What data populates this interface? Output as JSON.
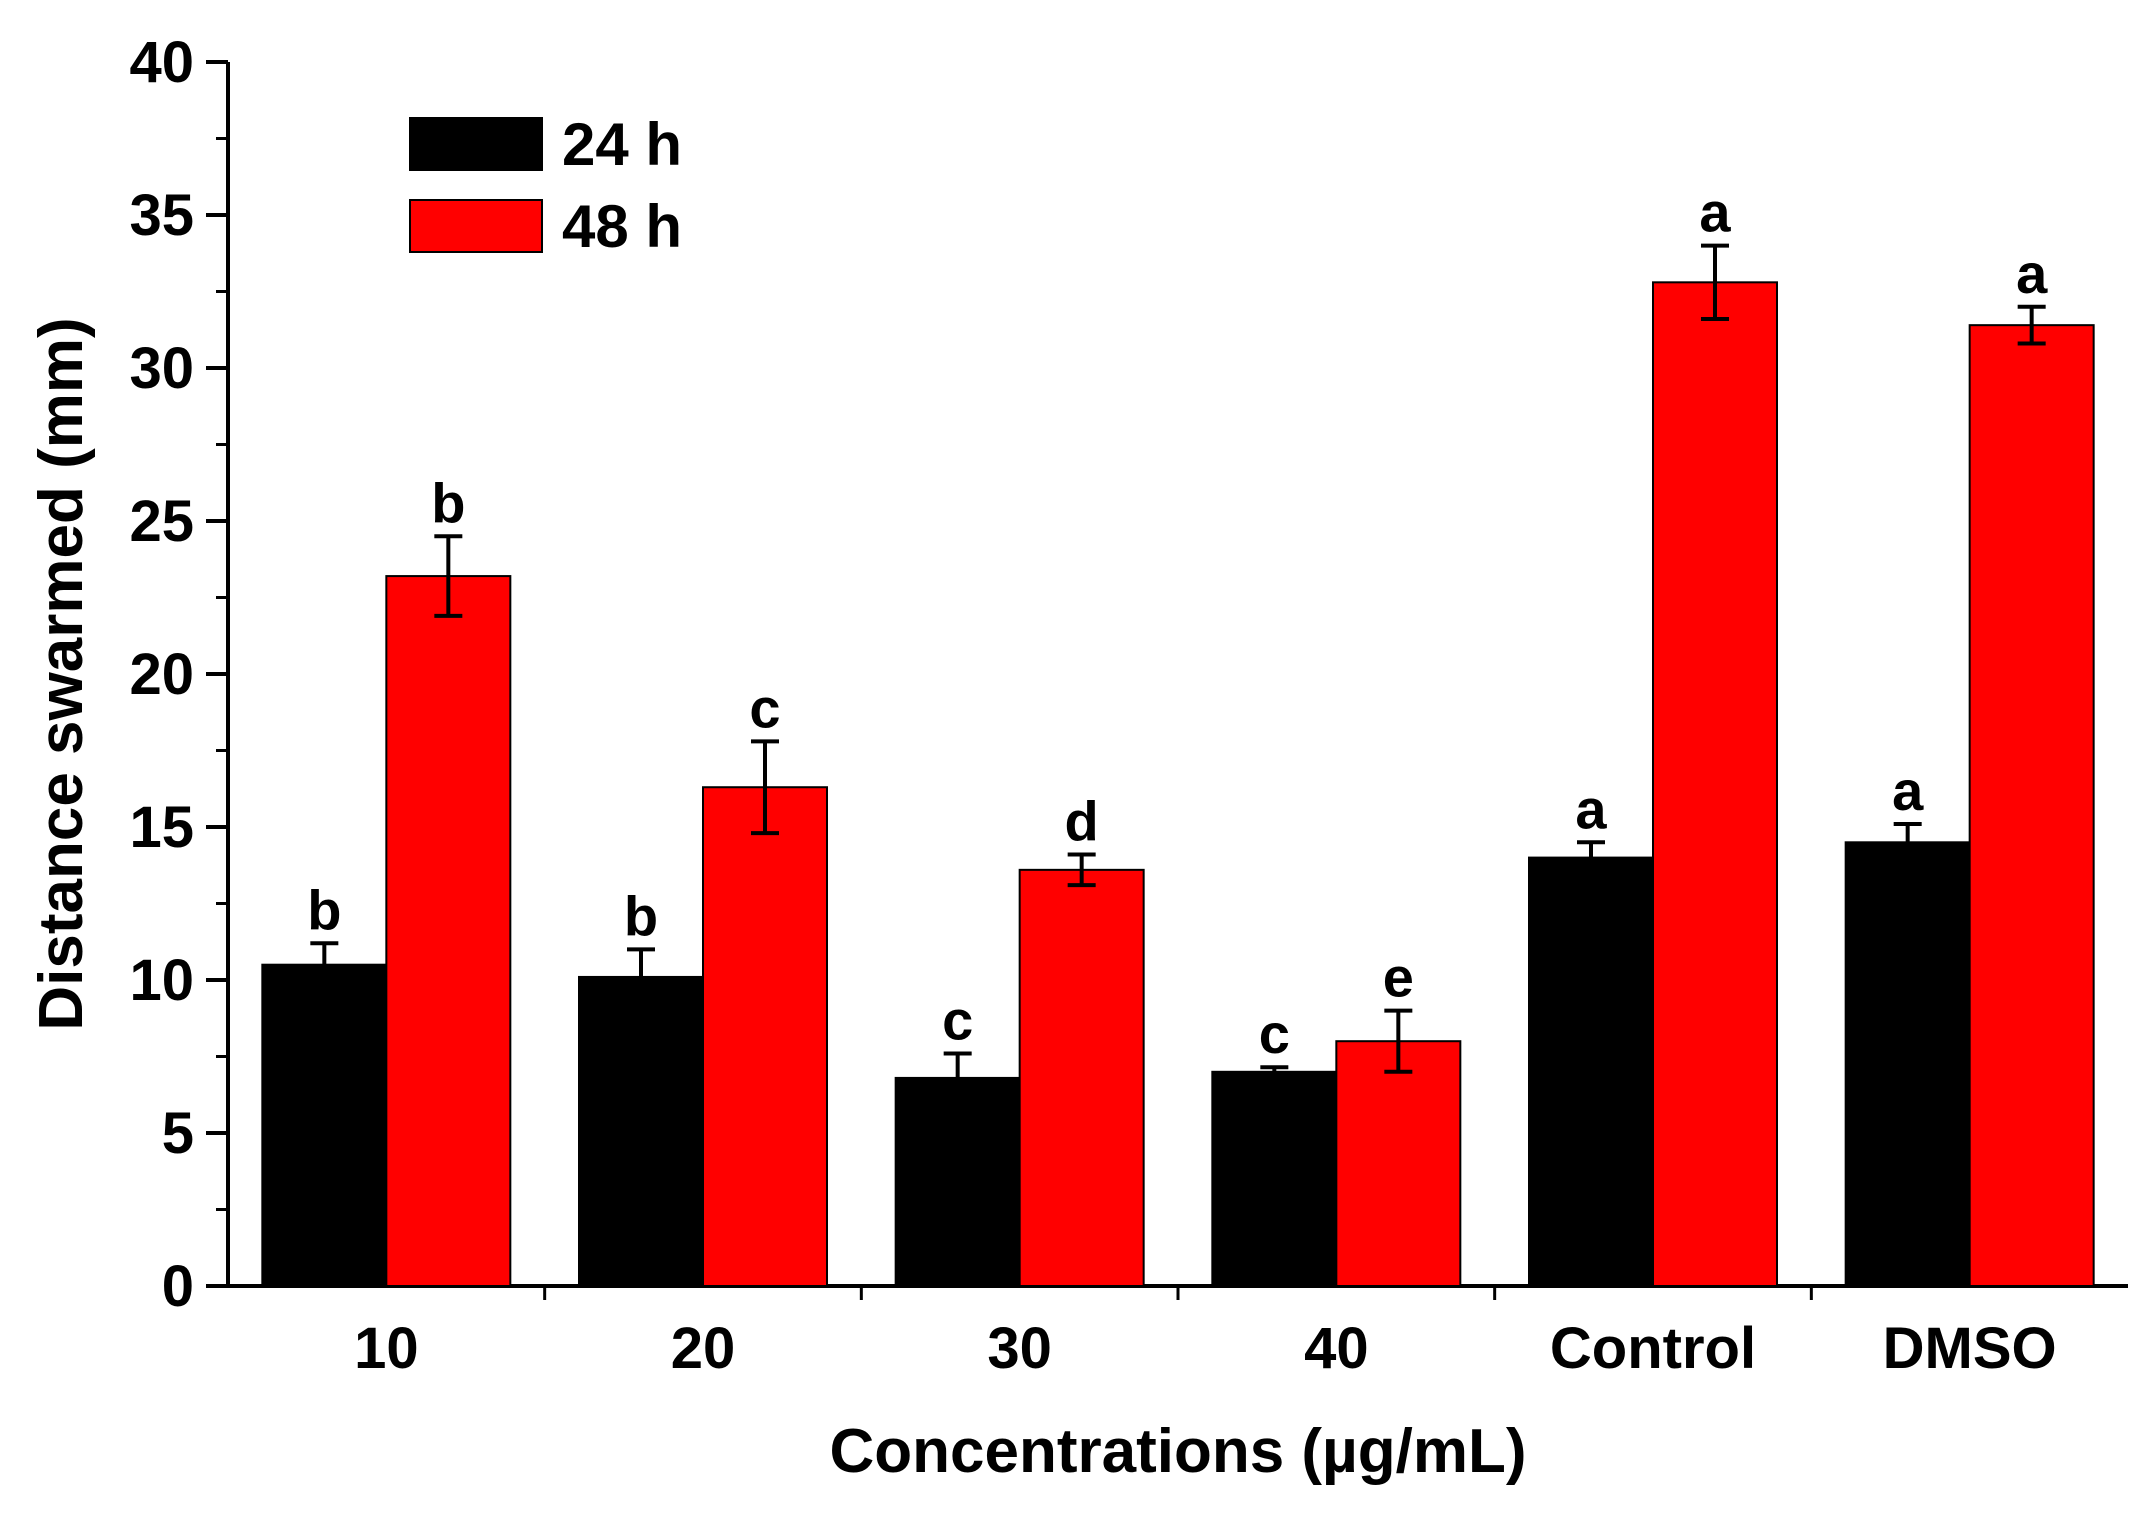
{
  "chart_data": {
    "type": "bar",
    "title": "",
    "xlabel": "Concentrations (µg/mL)",
    "ylabel": "Distance swarmed (mm)",
    "ylim": [
      0,
      40
    ],
    "yticks": [
      0,
      5,
      10,
      15,
      20,
      25,
      30,
      35,
      40
    ],
    "ytick_labels": [
      "0",
      "5",
      "10",
      "15",
      "20",
      "25",
      "30",
      "35",
      "40"
    ],
    "categories": [
      "10",
      "20",
      "30",
      "40",
      "Control",
      "DMSO"
    ],
    "legend_position": "top-left",
    "grid": false,
    "series": [
      {
        "name": "24 h",
        "color": "#000000",
        "values": [
          10.5,
          10.1,
          6.8,
          7.0,
          14.0,
          14.5
        ],
        "errors": [
          0.7,
          0.9,
          0.8,
          0.15,
          0.5,
          0.6
        ],
        "labels": [
          "b",
          "b",
          "c",
          "c",
          "a",
          "a"
        ]
      },
      {
        "name": "48 h",
        "color": "#ff0000",
        "values": [
          23.2,
          16.3,
          13.6,
          8.0,
          32.8,
          31.4
        ],
        "errors": [
          1.3,
          1.5,
          0.5,
          1.0,
          1.2,
          0.6
        ],
        "labels": [
          "b",
          "c",
          "d",
          "e",
          "a",
          "a"
        ]
      }
    ]
  }
}
